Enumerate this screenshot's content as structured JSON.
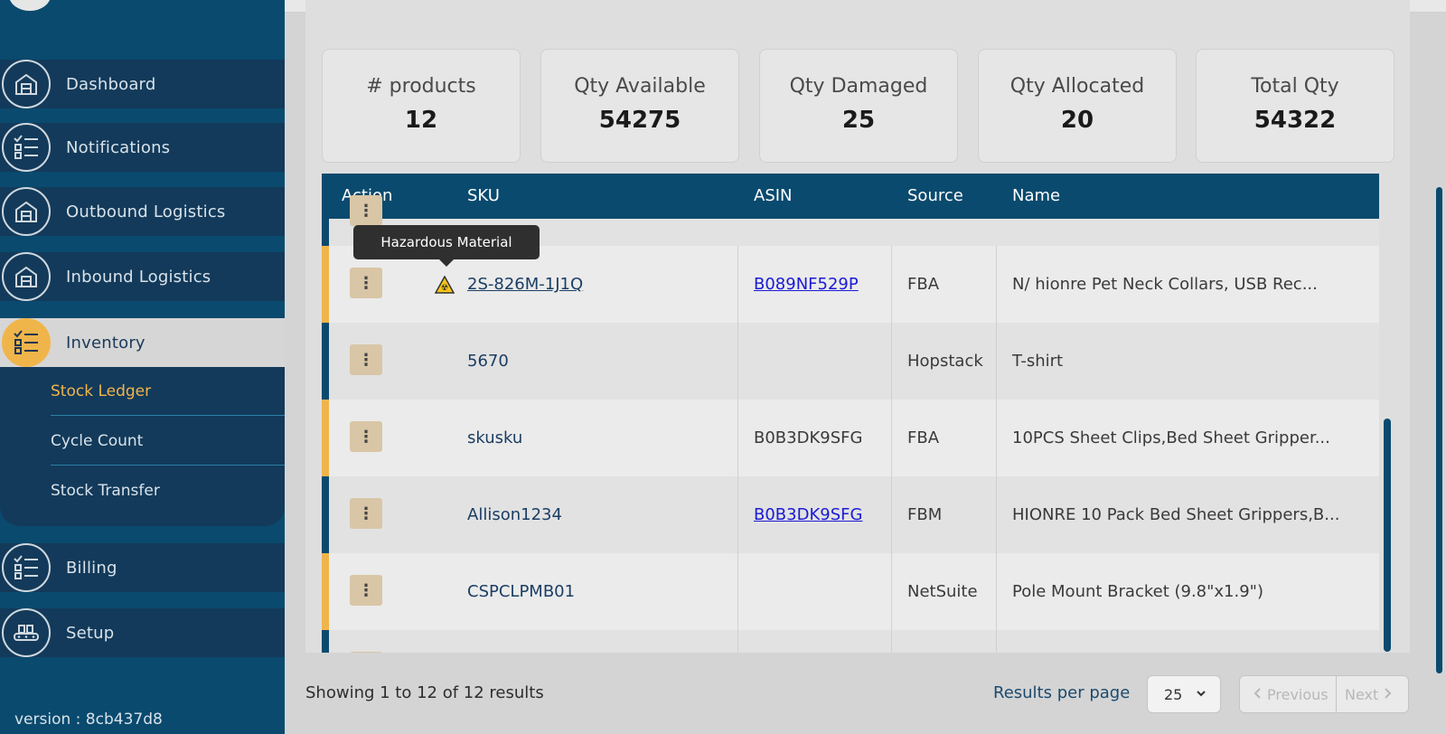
{
  "sidebar": {
    "items": [
      {
        "label": "Dashboard",
        "icon": "warehouse-icon"
      },
      {
        "label": "Notifications",
        "icon": "checklist-icon"
      },
      {
        "label": "Outbound Logistics",
        "icon": "warehouse-icon"
      },
      {
        "label": "Inbound Logistics",
        "icon": "warehouse-icon"
      },
      {
        "label": "Inventory",
        "icon": "checklist-icon"
      },
      {
        "label": "Billing",
        "icon": "checklist-icon"
      },
      {
        "label": "Setup",
        "icon": "conveyor-icon"
      }
    ],
    "submenu": [
      "Stock Ledger",
      "Cycle Count",
      "Stock Transfer"
    ],
    "version": "version : 8cb437d8"
  },
  "stats": [
    {
      "label": "# products",
      "value": "12"
    },
    {
      "label": "Qty Available",
      "value": "54275"
    },
    {
      "label": "Qty Damaged",
      "value": "25"
    },
    {
      "label": "Qty Allocated",
      "value": "20"
    },
    {
      "label": "Total Qty",
      "value": "54322"
    }
  ],
  "table": {
    "headers": [
      "Action",
      "SKU",
      "ASIN",
      "Source",
      "Name"
    ],
    "tooltip": "Hazardous Material",
    "rows": [
      {
        "sku": "2S-826M-1J1Q",
        "asin": "B089NF529P",
        "source": "FBA",
        "name": "N/ hionre Pet Neck Collars, USB Rec...",
        "strip": "#f0b54a"
      },
      {
        "sku": "5670",
        "asin": "",
        "source": "Hopstack",
        "name": "T-shirt",
        "strip": "#0a4a6e"
      },
      {
        "sku": "skusku",
        "asin": "B0B3DK9SFG",
        "source": "FBA",
        "name": "10PCS Sheet Clips,Bed Sheet Gripper...",
        "strip": "#f0b54a"
      },
      {
        "sku": "Allison1234",
        "asin": "B0B3DK9SFG",
        "source": "FBM",
        "name": "HIONRE 10 Pack Bed Sheet Grippers,B...",
        "strip": "#0a4a6e"
      },
      {
        "sku": "CSPCLPMB01",
        "asin": "",
        "source": "NetSuite",
        "name": "Pole Mount Bracket (9.8\"x1.9\")",
        "strip": "#f0b54a"
      }
    ]
  },
  "footer": {
    "showing": "Showing 1 to 12 of 12 results",
    "results_per_page_label": "Results per page",
    "results_per_page": "25",
    "previous": "Previous",
    "next": "Next"
  }
}
